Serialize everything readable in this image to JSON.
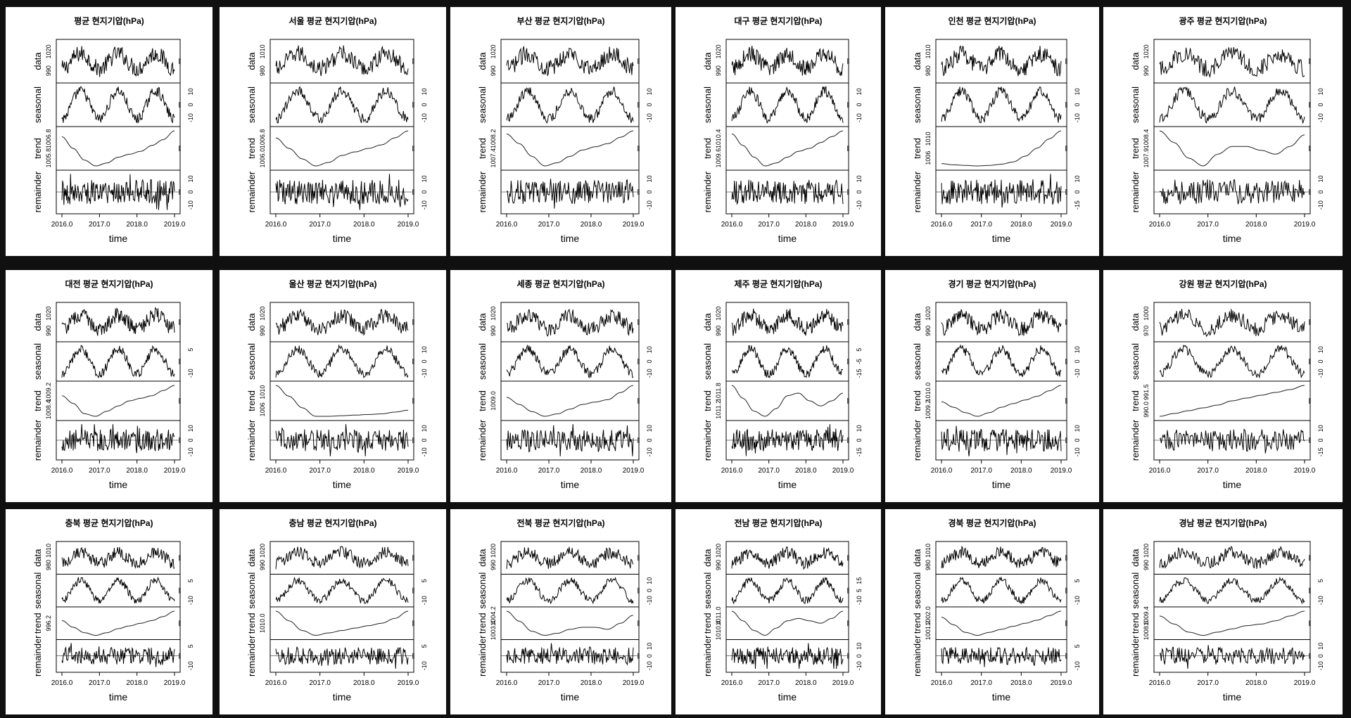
{
  "chart_data": [
    {
      "type": "line",
      "title": "평균 현지기압(hPa)",
      "xlabel": "time",
      "xticks": [
        "2016.0",
        "2017.0",
        "2018.0",
        "2019.0"
      ],
      "panel_labels": [
        "data",
        "seasonal",
        "trend",
        "remainder"
      ],
      "left_ticks": [
        [
          "1020",
          "990"
        ],
        [],
        [
          "1006.8",
          "1005.8"
        ],
        []
      ],
      "right_ticks": [
        [],
        [
          "10",
          "0",
          "-10"
        ],
        [],
        [
          "10",
          "0",
          "-10"
        ]
      ],
      "trend": [
        1006.6,
        1006.2,
        1005.8,
        1005.6,
        1005.7,
        1005.9,
        1006.0,
        1006.1,
        1006.3,
        1006.5,
        1006.8
      ]
    },
    {
      "type": "line",
      "title": "서울 평균 현지기압(hPa)",
      "xlabel": "time",
      "xticks": [
        "2016.0",
        "2017.0",
        "2018.0",
        "2019.0"
      ],
      "panel_labels": [
        "data",
        "seasonal",
        "trend",
        "remainder"
      ],
      "left_ticks": [
        [
          "1010",
          "980"
        ],
        [],
        [
          "1006.8",
          "1006.0"
        ],
        []
      ],
      "right_ticks": [
        [],
        [
          "10",
          "0",
          "-10"
        ],
        [],
        [
          "10",
          "0",
          "-10"
        ]
      ],
      "trend": [
        1006.6,
        1006.3,
        1006.0,
        1005.8,
        1005.9,
        1006.1,
        1006.2,
        1006.3,
        1006.4,
        1006.6,
        1006.8
      ]
    },
    {
      "type": "line",
      "title": "부산 평균 현지기압(hPa)",
      "xlabel": "time",
      "xticks": [
        "2016.0",
        "2017.0",
        "2018.0",
        "2019.0"
      ],
      "panel_labels": [
        "data",
        "seasonal",
        "trend",
        "remainder"
      ],
      "left_ticks": [
        [
          "1020",
          "990"
        ],
        [],
        [
          "1008.2",
          "1007.4"
        ],
        []
      ],
      "right_ticks": [
        [],
        [
          "10",
          "0",
          "-10"
        ],
        [],
        [
          "10",
          "0",
          "-10"
        ]
      ],
      "trend": [
        1008.4,
        1008.1,
        1007.7,
        1007.4,
        1007.5,
        1007.7,
        1007.9,
        1008.0,
        1008.1,
        1008.3,
        1008.5
      ]
    },
    {
      "type": "line",
      "title": "대구 평균 현지기압(hPa)",
      "xlabel": "time",
      "xticks": [
        "2016.0",
        "2017.0",
        "2018.0",
        "2019.0"
      ],
      "panel_labels": [
        "data",
        "seasonal",
        "trend",
        "remainder"
      ],
      "left_ticks": [
        [
          "1020",
          "990"
        ],
        [],
        [
          "1010.4",
          "1009.6"
        ],
        []
      ],
      "right_ticks": [
        [],
        [
          "10",
          "0",
          "-10"
        ],
        [],
        [
          "10",
          "0",
          "-10"
        ]
      ],
      "trend": [
        1010.6,
        1010.2,
        1009.8,
        1009.5,
        1009.6,
        1009.8,
        1010.0,
        1010.1,
        1010.3,
        1010.5,
        1010.7
      ]
    },
    {
      "type": "line",
      "title": "인천 평균 현지기압(hPa)",
      "xlabel": "time",
      "xticks": [
        "2016.0",
        "2017.0",
        "2018.0",
        "2019.0"
      ],
      "panel_labels": [
        "data",
        "seasonal",
        "trend",
        "remainder"
      ],
      "left_ticks": [
        [
          "1010",
          "980"
        ],
        [],
        [
          "1010",
          "1006"
        ],
        []
      ],
      "right_ticks": [
        [],
        [
          "10",
          "0",
          "-10"
        ],
        [],
        [
          "10",
          "0",
          "-15"
        ]
      ],
      "trend": [
        1005.5,
        1005.3,
        1005.2,
        1005.1,
        1005.2,
        1005.4,
        1005.8,
        1006.8,
        1008.2,
        1009.8,
        1011.2
      ]
    },
    {
      "type": "line",
      "title": "광주 평균 현지기압(hPa)",
      "xlabel": "time",
      "xticks": [
        "2016.0",
        "2017.0",
        "2018.0",
        "2019.0"
      ],
      "panel_labels": [
        "data",
        "seasonal",
        "trend",
        "remainder"
      ],
      "left_ticks": [
        [
          "1020",
          "990"
        ],
        [],
        [
          "1008.4",
          "1007.9"
        ],
        []
      ],
      "right_ticks": [
        [],
        [
          "10",
          "0",
          "-10"
        ],
        [],
        [
          "10",
          "0",
          "-10"
        ]
      ],
      "trend": [
        1008.6,
        1008.3,
        1007.9,
        1007.7,
        1008.0,
        1008.2,
        1008.2,
        1008.1,
        1008.0,
        1008.2,
        1008.5
      ]
    },
    {
      "type": "line",
      "title": "대전 평균 현지기압(hPa)",
      "xlabel": "time",
      "xticks": [
        "2016.0",
        "2017.0",
        "2018.0",
        "2019.0"
      ],
      "panel_labels": [
        "data",
        "seasonal",
        "trend",
        "remainder"
      ],
      "left_ticks": [
        [
          "1020",
          "990"
        ],
        [],
        [
          "1009.2",
          "1008.4"
        ],
        []
      ],
      "right_ticks": [
        [],
        [
          "5",
          "-10"
        ],
        [],
        [
          "10",
          "0",
          "-10"
        ]
      ],
      "trend": [
        1009.0,
        1008.7,
        1008.3,
        1008.2,
        1008.4,
        1008.6,
        1008.8,
        1008.9,
        1009.0,
        1009.2,
        1009.4
      ]
    },
    {
      "type": "line",
      "title": "울산 평균 현지기압(hPa)",
      "xlabel": "time",
      "xticks": [
        "2016.0",
        "2017.0",
        "2018.0",
        "2019.0"
      ],
      "panel_labels": [
        "data",
        "seasonal",
        "trend",
        "remainder"
      ],
      "left_ticks": [
        [
          "1020",
          "990"
        ],
        [],
        [
          "1010",
          "1006"
        ],
        []
      ],
      "right_ticks": [
        [],
        [
          "10",
          "0",
          "-10"
        ],
        [],
        [
          "10",
          "0",
          "-10"
        ]
      ],
      "trend": [
        1011.0,
        1009.2,
        1007.3,
        1005.9,
        1005.9,
        1006.0,
        1006.1,
        1006.2,
        1006.3,
        1006.6,
        1006.9
      ]
    },
    {
      "type": "line",
      "title": "세종 평균 현지기압(hPa)",
      "xlabel": "time",
      "xticks": [
        "2016.0",
        "2017.0",
        "2018.0",
        "2019.0"
      ],
      "panel_labels": [
        "data",
        "seasonal",
        "trend",
        "remainder"
      ],
      "left_ticks": [
        [
          "1020",
          "990"
        ],
        [],
        [
          "1009.0"
        ],
        []
      ],
      "right_ticks": [
        [],
        [
          "10",
          "0",
          "-10"
        ],
        [],
        [
          "10",
          "0",
          "-10"
        ]
      ],
      "trend": [
        1009.5,
        1009.2,
        1008.9,
        1008.7,
        1008.8,
        1009.0,
        1009.2,
        1009.3,
        1009.4,
        1009.7,
        1010.0
      ]
    },
    {
      "type": "line",
      "title": "제주 평균 현지기압(hPa)",
      "xlabel": "time",
      "xticks": [
        "2016.0",
        "2017.0",
        "2018.0",
        "2019.0"
      ],
      "panel_labels": [
        "data",
        "seasonal",
        "trend",
        "remainder"
      ],
      "left_ticks": [
        [
          "1020",
          "990"
        ],
        [],
        [
          "1011.8",
          "1011.2"
        ],
        []
      ],
      "right_ticks": [
        [],
        [
          "5",
          "-5",
          "-15"
        ],
        [],
        [
          "10",
          "0",
          "-15"
        ]
      ],
      "trend": [
        1012.2,
        1011.7,
        1011.2,
        1011.0,
        1011.3,
        1011.8,
        1011.9,
        1011.6,
        1011.4,
        1011.6,
        1011.9
      ]
    },
    {
      "type": "line",
      "title": "경기 평균 현지기압(hPa)",
      "xlabel": "time",
      "xticks": [
        "2016.0",
        "2017.0",
        "2018.0",
        "2019.0"
      ],
      "panel_labels": [
        "data",
        "seasonal",
        "trend",
        "remainder"
      ],
      "left_ticks": [
        [
          "1020",
          "990"
        ],
        [],
        [
          "1010.0",
          "1009.2"
        ],
        []
      ],
      "right_ticks": [
        [],
        [
          "10",
          "0",
          "-10"
        ],
        [],
        [
          "10",
          "0",
          "-10"
        ]
      ],
      "trend": [
        1009.5,
        1009.2,
        1008.9,
        1008.7,
        1008.9,
        1009.2,
        1009.4,
        1009.6,
        1009.8,
        1010.1,
        1010.4
      ]
    },
    {
      "type": "line",
      "title": "강원 평균 현지기압(hPa)",
      "xlabel": "time",
      "xticks": [
        "2016.0",
        "2017.0",
        "2018.0",
        "2019.0"
      ],
      "panel_labels": [
        "data",
        "seasonal",
        "trend",
        "remainder"
      ],
      "left_ticks": [
        [
          "1000",
          "970"
        ],
        [],
        [
          "991.5",
          "990.0"
        ],
        []
      ],
      "right_ticks": [
        [],
        [
          "10",
          "0",
          "-10"
        ],
        [],
        [
          "10",
          "0",
          "-15"
        ]
      ],
      "trend": [
        989.8,
        990.0,
        990.2,
        990.4,
        990.6,
        990.9,
        991.1,
        991.3,
        991.5,
        991.7,
        992.0
      ]
    },
    {
      "type": "line",
      "title": "충북 평균 현지기압(hPa)",
      "xlabel": "time",
      "xticks": [
        "2016.0",
        "2017.0",
        "2018.0",
        "2019.0"
      ],
      "panel_labels": [
        "data",
        "seasonal",
        "trend",
        "remainder"
      ],
      "left_ticks": [
        [
          "1010",
          "980"
        ],
        [],
        [
          "996.2"
        ],
        []
      ],
      "right_ticks": [
        [],
        [
          "5",
          "-10"
        ],
        [],
        [
          "5",
          "-10"
        ]
      ],
      "trend": [
        996.8,
        996.3,
        995.9,
        995.7,
        995.9,
        996.2,
        996.4,
        996.6,
        996.8,
        997.1,
        997.5
      ]
    },
    {
      "type": "line",
      "title": "충남 평균 현지기압(hPa)",
      "xlabel": "time",
      "xticks": [
        "2016.0",
        "2017.0",
        "2018.0",
        "2019.0"
      ],
      "panel_labels": [
        "data",
        "seasonal",
        "trend",
        "remainder"
      ],
      "left_ticks": [
        [
          "1020",
          "990"
        ],
        [],
        [
          "1010.0"
        ],
        []
      ],
      "right_ticks": [
        [],
        [
          "5",
          "-10"
        ],
        [],
        [
          "5",
          "-10"
        ]
      ],
      "trend": [
        1010.9,
        1010.5,
        1010.1,
        1009.9,
        1010.0,
        1010.1,
        1010.2,
        1010.3,
        1010.4,
        1010.6,
        1010.9
      ]
    },
    {
      "type": "line",
      "title": "전북 평균 현지기압(hPa)",
      "xlabel": "time",
      "xticks": [
        "2016.0",
        "2017.0",
        "2018.0",
        "2019.0"
      ],
      "panel_labels": [
        "data",
        "seasonal",
        "trend",
        "remainder"
      ],
      "left_ticks": [
        [
          "1020",
          "990"
        ],
        [],
        [
          "1004.2",
          "1003.4"
        ],
        []
      ],
      "right_ticks": [
        [],
        [
          "10",
          "0",
          "-10"
        ],
        [],
        [
          "10",
          "0",
          "-10"
        ]
      ],
      "trend": [
        1004.5,
        1004.0,
        1003.5,
        1003.3,
        1003.4,
        1003.6,
        1003.7,
        1003.7,
        1003.6,
        1003.9,
        1004.3
      ]
    },
    {
      "type": "line",
      "title": "전남 평균 현지기압(hPa)",
      "xlabel": "time",
      "xticks": [
        "2016.0",
        "2017.0",
        "2018.0",
        "2019.0"
      ],
      "panel_labels": [
        "data",
        "seasonal",
        "trend",
        "remainder"
      ],
      "left_ticks": [
        [
          "1020",
          "990"
        ],
        [],
        [
          "1011.0",
          "1010.4"
        ],
        []
      ],
      "right_ticks": [
        [],
        [
          "15",
          "5",
          "-10"
        ],
        [],
        [
          "10",
          "0",
          "-10"
        ]
      ],
      "trend": [
        1011.2,
        1010.8,
        1010.4,
        1010.2,
        1010.5,
        1010.8,
        1010.9,
        1010.8,
        1010.7,
        1010.9,
        1011.2
      ]
    },
    {
      "type": "line",
      "title": "경북 평균 현지기압(hPa)",
      "xlabel": "time",
      "xticks": [
        "2016.0",
        "2017.0",
        "2018.0",
        "2019.0"
      ],
      "panel_labels": [
        "data",
        "seasonal",
        "trend",
        "remainder"
      ],
      "left_ticks": [
        [
          "1010",
          "980"
        ],
        [],
        [
          "1002.0",
          "1001.2"
        ],
        []
      ],
      "right_ticks": [
        [],
        [
          "5",
          "-10"
        ],
        [],
        [
          "5",
          "-10"
        ]
      ],
      "trend": [
        1002.2,
        1001.7,
        1001.2,
        1001.0,
        1001.2,
        1001.4,
        1001.6,
        1001.8,
        1002.0,
        1002.3,
        1002.6
      ]
    },
    {
      "type": "line",
      "title": "경남 평균 현지기압(hPa)",
      "xlabel": "time",
      "xticks": [
        "2016.0",
        "2017.0",
        "2018.0",
        "2019.0"
      ],
      "panel_labels": [
        "data",
        "seasonal",
        "trend",
        "remainder"
      ],
      "left_ticks": [
        [
          "1020",
          "990"
        ],
        [],
        [
          "1009.4",
          "1008.6"
        ],
        []
      ],
      "right_ticks": [
        [],
        [
          "5",
          "-10"
        ],
        [],
        [
          "10",
          "0",
          "-10"
        ]
      ],
      "trend": [
        1009.6,
        1009.1,
        1008.6,
        1008.4,
        1008.6,
        1008.8,
        1009.0,
        1009.1,
        1009.3,
        1009.6,
        1009.9
      ]
    }
  ]
}
